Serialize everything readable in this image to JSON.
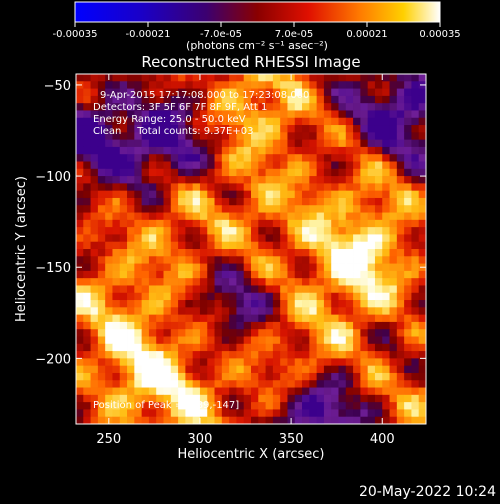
{
  "colorbar": {
    "tick_labels": [
      "-0.00035",
      "-0.00021",
      "-7.0e-05",
      "7.0e-05",
      "0.00021",
      "0.00035"
    ],
    "tick_values": [
      -0.00035,
      -0.00021,
      -7e-05,
      7e-05,
      0.00021,
      0.00035
    ],
    "range": [
      -0.00035,
      0.00035
    ],
    "units_label": "(photons cm⁻² s⁻¹ asec⁻²)"
  },
  "chart_data": {
    "type": "heatmap",
    "title": "Reconstructed RHESSI Image",
    "xlabel": "Heliocentric X (arcsec)",
    "ylabel": "Heliocentric Y (arcsec)",
    "xlim": [
      232,
      424
    ],
    "ylim": [
      -236,
      -44
    ],
    "x_ticks": [
      250,
      300,
      350,
      400
    ],
    "y_ticks": [
      -50,
      -100,
      -150,
      -200
    ],
    "x_tick_labels": [
      "250",
      "300",
      "350",
      "400"
    ],
    "y_tick_labels": [
      "−50",
      "−100",
      "−150",
      "−200"
    ],
    "annotations": [
      "9-Apr-2015 17:17:08.000 to 17:23:08.000",
      "Detectors: 3F 5F 6F 7F 8F 9F, Att 1",
      "Energy Range: 25.0 - 50.0 keV",
      "Clean     Total counts: 9.37E+03"
    ],
    "peak_label": "Position of Peak = [389,-147]",
    "peak": [
      389,
      -147
    ]
  },
  "timestamp": "20-May-2022 10:24",
  "colors": {
    "background": "#000000",
    "foreground": "#ffffff"
  }
}
